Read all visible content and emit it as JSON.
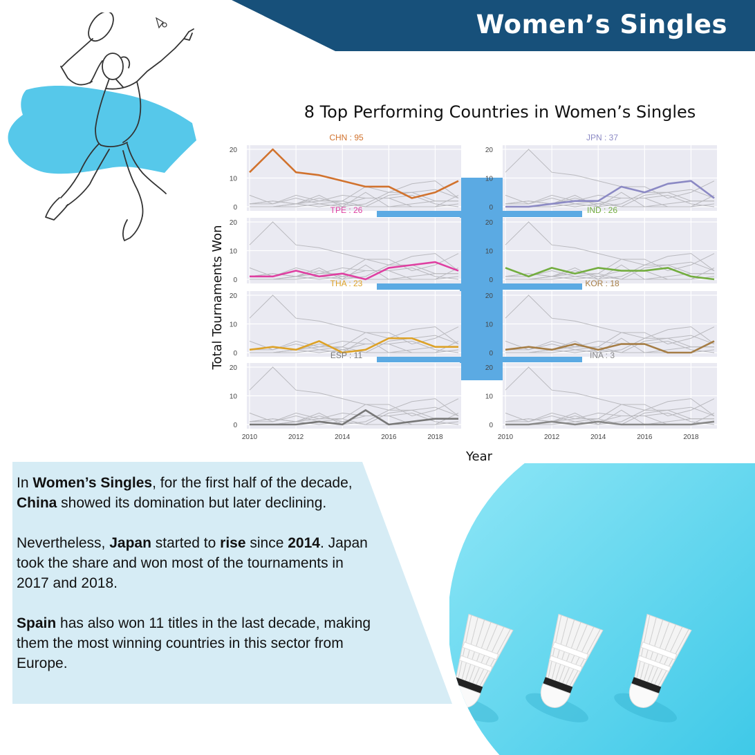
{
  "header": {
    "title": "Women’s Singles"
  },
  "colors": {
    "banner": "#17507a",
    "connector": "#5baae3",
    "panel_bg": "#d6ecf5",
    "circle_bg": "#6dd8ef"
  },
  "chart_data": {
    "type": "line",
    "title": "8 Top Performing Countries in Women’s Singles",
    "xlabel": "Year",
    "ylabel": "Total Tournaments Won",
    "xlim": [
      2010,
      2019
    ],
    "ylim": [
      0,
      20
    ],
    "x_ticks": [
      "2010",
      "2012",
      "2014",
      "2016",
      "2018"
    ],
    "y_ticks": [
      "0",
      "10",
      "20"
    ],
    "x": [
      2010,
      2011,
      2012,
      2013,
      2014,
      2015,
      2016,
      2017,
      2018,
      2019
    ],
    "series": [
      {
        "name": "CHN",
        "label": "CHN : 95",
        "color": "#d1722d",
        "values": [
          12,
          20,
          12,
          11,
          9,
          7,
          7,
          3,
          5,
          9
        ]
      },
      {
        "name": "JPN",
        "label": "JPN : 37",
        "color": "#8b89c4",
        "values": [
          0,
          0,
          1,
          2,
          2,
          7,
          5,
          8,
          9,
          3
        ]
      },
      {
        "name": "TPE",
        "label": "TPE : 26",
        "color": "#df3fa1",
        "values": [
          1,
          1,
          3,
          1,
          2,
          0,
          4,
          5,
          6,
          3
        ]
      },
      {
        "name": "IND",
        "label": "IND : 26",
        "color": "#73ad3f",
        "values": [
          4,
          1,
          4,
          2,
          4,
          3,
          3,
          4,
          1,
          0
        ]
      },
      {
        "name": "THA",
        "label": "THA : 23",
        "color": "#dda227",
        "values": [
          1,
          2,
          1,
          4,
          0,
          1,
          5,
          5,
          2,
          2
        ]
      },
      {
        "name": "KOR",
        "label": "KOR : 18",
        "color": "#a57d45",
        "values": [
          1,
          2,
          1,
          3,
          1,
          3,
          3,
          0,
          0,
          4
        ]
      },
      {
        "name": "ESP",
        "label": "ESP : 11",
        "color": "#777777",
        "values": [
          0,
          0,
          0,
          1,
          0,
          5,
          0,
          1,
          2,
          2
        ]
      },
      {
        "name": "INA",
        "label": "INA : 3",
        "color": "#888888",
        "values": [
          0,
          0,
          1,
          0,
          1,
          0,
          0,
          0,
          0,
          1
        ]
      }
    ]
  },
  "text": {
    "p1_a": "In ",
    "p1_b": "Women’s Singles",
    "p1_c": ", for the first half of the decade, ",
    "p1_d": "China",
    "p1_e": " showed its domination but later declining.",
    "p2_a": "Nevertheless, ",
    "p2_b": "Japan",
    "p2_c": " started to ",
    "p2_d": "rise",
    "p2_e": " since ",
    "p2_f": "2014",
    "p2_g": ". Japan took the share and won most of the tournaments in 2017 and 2018.",
    "p3_a": "Spain",
    "p3_b": " has also won 11 titles in the last decade, making them the most winning countries in this sector from Europe."
  }
}
